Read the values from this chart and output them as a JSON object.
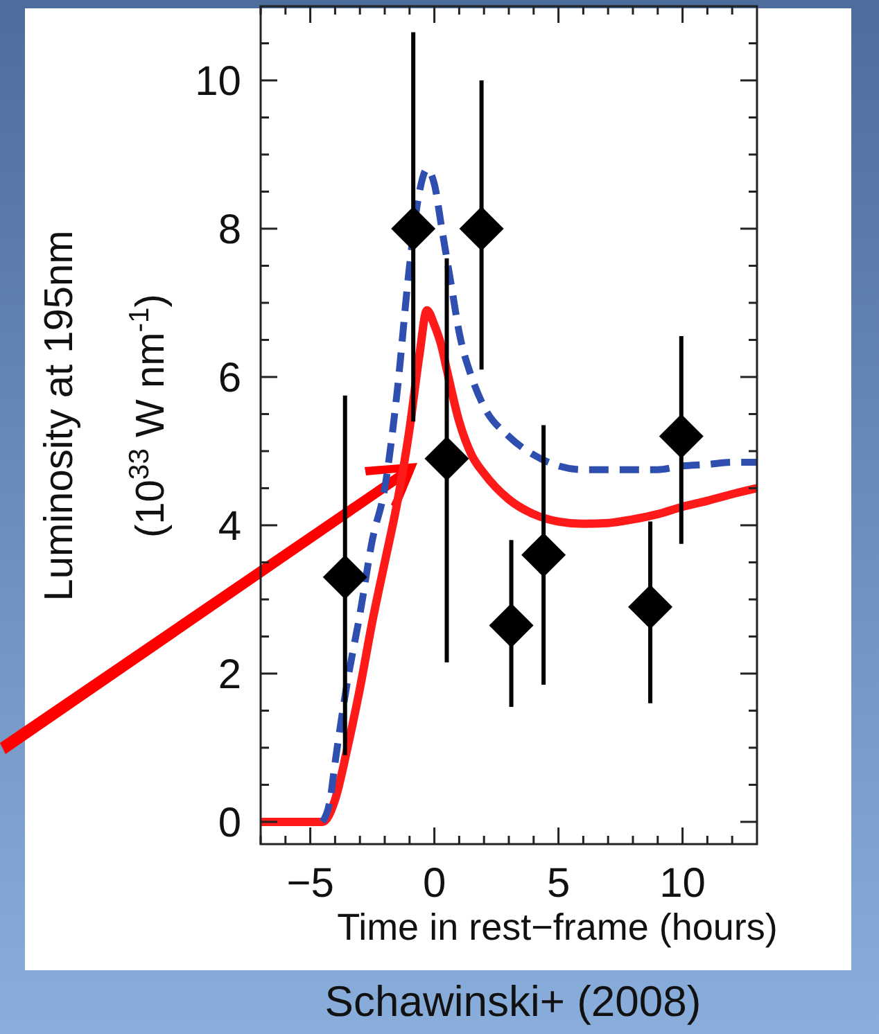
{
  "chart_data": {
    "type": "scatter",
    "xlabel": "Time in rest−frame (hours)",
    "ylabel": "Luminosity at 195nm\n(10$^{33}$ W nm$^{-1}$)",
    "xlim": [
      -7,
      13
    ],
    "ylim": [
      -0.3,
      11
    ],
    "xticks": [
      {
        "value": -7,
        "label": null
      },
      {
        "value": -6,
        "label": null
      },
      {
        "value": -5,
        "label": "−5"
      },
      {
        "value": -4,
        "label": null
      },
      {
        "value": -3,
        "label": null
      },
      {
        "value": -2,
        "label": null
      },
      {
        "value": -1,
        "label": null
      },
      0,
      {
        "value": 1,
        "label": null
      },
      {
        "value": 2,
        "label": null
      },
      {
        "value": 3,
        "label": null
      },
      {
        "value": 4,
        "label": null
      },
      5,
      {
        "value": 6,
        "label": null
      },
      {
        "value": 7,
        "label": null
      },
      {
        "value": 8,
        "label": null
      },
      {
        "value": 9,
        "label": null
      },
      10,
      {
        "value": 11,
        "label": null
      },
      {
        "value": 12,
        "label": null
      }
    ],
    "yticks": [
      0,
      {
        "value": 0.5,
        "label": null
      },
      {
        "value": 1,
        "label": null
      },
      {
        "value": 1.5,
        "label": null
      },
      2,
      {
        "value": 2.5,
        "label": null
      },
      {
        "value": 3,
        "label": null
      },
      {
        "value": 3.5,
        "label": null
      },
      4,
      {
        "value": 4.5,
        "label": null
      },
      {
        "value": 5,
        "label": null
      },
      {
        "value": 5.5,
        "label": null
      },
      6,
      {
        "value": 6.5,
        "label": null
      },
      {
        "value": 7,
        "label": null
      },
      {
        "value": 7.5,
        "label": null
      },
      8,
      {
        "value": 8.5,
        "label": null
      },
      {
        "value": 9,
        "label": null
      },
      {
        "value": 9.5,
        "label": null
      },
      10,
      {
        "value": 10.5,
        "label": null
      }
    ],
    "grid": false,
    "series": [
      {
        "type": "line",
        "color": "#ff1a1a",
        "line_style": "solid",
        "x": [
          -7,
          -4.5,
          -4,
          -3.5,
          -3,
          -2.5,
          -2,
          -1.5,
          -1,
          -0.6,
          -0.3,
          0,
          0.3,
          0.5,
          1,
          1.5,
          2,
          3,
          4,
          5,
          6,
          7,
          8,
          9,
          10,
          11,
          12,
          13
        ],
        "values": [
          0,
          0,
          0.3,
          1.0,
          1.8,
          2.7,
          3.5,
          4.3,
          5.3,
          6.3,
          6.9,
          6.7,
          6.4,
          6.1,
          5.4,
          4.95,
          4.7,
          4.35,
          4.15,
          4.05,
          4.02,
          4.03,
          4.08,
          4.15,
          4.25,
          4.33,
          4.42,
          4.5
        ]
      },
      {
        "type": "line",
        "color": "#2f4fb0",
        "line_style": "dashed",
        "x": [
          -4.5,
          -4.2,
          -4,
          -3.5,
          -3,
          -2.5,
          -2,
          -1.5,
          -1,
          -0.6,
          -0.3,
          0,
          0.3,
          0.7,
          1,
          1.5,
          2,
          3,
          4,
          5,
          6,
          7,
          8,
          9,
          10,
          11,
          12,
          13
        ],
        "values": [
          0,
          0.3,
          0.8,
          1.9,
          2.8,
          3.8,
          4.5,
          5.8,
          7.5,
          8.5,
          8.8,
          8.6,
          8.0,
          7.2,
          6.6,
          6.0,
          5.6,
          5.2,
          4.95,
          4.8,
          4.75,
          4.75,
          4.75,
          4.75,
          4.8,
          4.82,
          4.85,
          4.85
        ]
      },
      {
        "color": "#000000",
        "marker": "diamond",
        "x": [
          -3.6,
          -0.85,
          0.5,
          1.9,
          3.1,
          4.4,
          8.7,
          9.95
        ],
        "values": [
          3.3,
          8.0,
          4.9,
          8.0,
          2.65,
          3.6,
          2.9,
          5.2
        ],
        "errors": [
          [
            0.9,
            5.75
          ],
          [
            5.4,
            10.65
          ],
          [
            2.15,
            7.6
          ],
          [
            6.1,
            10
          ],
          [
            1.55,
            3.8
          ],
          [
            1.85,
            5.35
          ],
          [
            1.6,
            4.05
          ],
          [
            3.75,
            6.55
          ]
        ]
      }
    ],
    "annotations": [
      "Schawinski+ (2008)"
    ]
  }
}
